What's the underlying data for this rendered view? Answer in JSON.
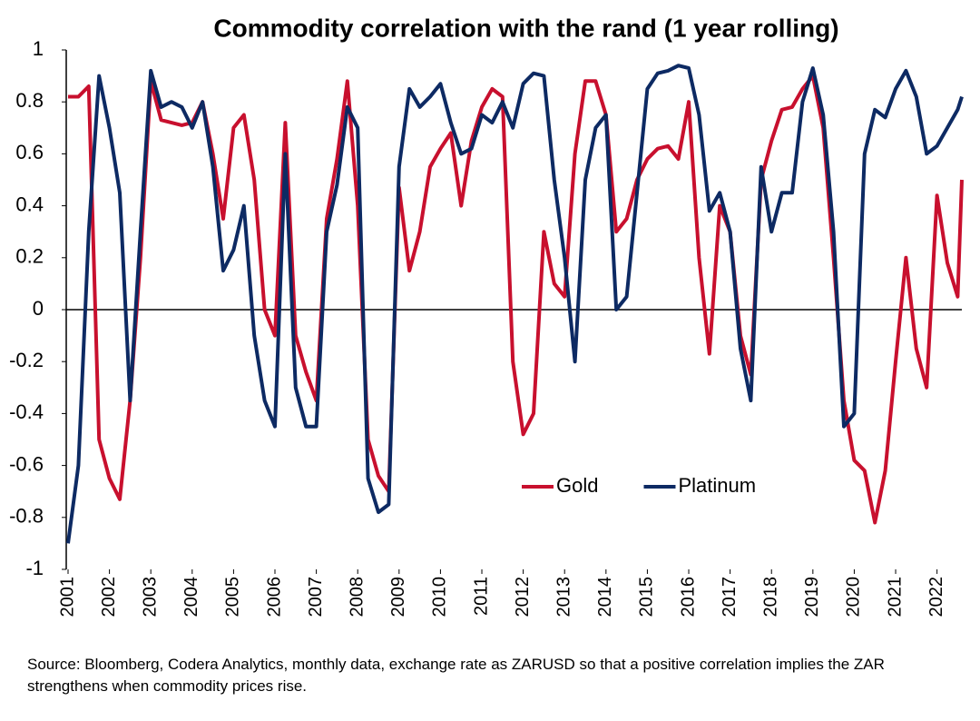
{
  "chart_data": {
    "type": "line",
    "title": "Commodity correlation with the rand (1 year rolling)",
    "note": "Source: Bloomberg, Codera Analytics, monthly data, exchange rate as ZARUSD so that a positive correlation implies the ZAR strengthens when commodity prices rise.",
    "x": [
      2001,
      2001.25,
      2001.5,
      2001.75,
      2002,
      2002.25,
      2002.5,
      2002.75,
      2003,
      2003.25,
      2003.5,
      2003.75,
      2004,
      2004.25,
      2004.5,
      2004.75,
      2005,
      2005.25,
      2005.5,
      2005.75,
      2006,
      2006.25,
      2006.5,
      2006.75,
      2007,
      2007.25,
      2007.5,
      2007.75,
      2008,
      2008.25,
      2008.5,
      2008.75,
      2009,
      2009.25,
      2009.5,
      2009.75,
      2010,
      2010.25,
      2010.5,
      2010.75,
      2011,
      2011.25,
      2011.5,
      2011.75,
      2012,
      2012.25,
      2012.5,
      2012.75,
      2013,
      2013.25,
      2013.5,
      2013.75,
      2014,
      2014.25,
      2014.5,
      2014.75,
      2015,
      2015.25,
      2015.5,
      2015.75,
      2016,
      2016.25,
      2016.5,
      2016.75,
      2017,
      2017.25,
      2017.5,
      2017.75,
      2018,
      2018.25,
      2018.5,
      2018.75,
      2019,
      2019.25,
      2019.5,
      2019.75,
      2020,
      2020.25,
      2020.5,
      2020.75,
      2021,
      2021.25,
      2021.5,
      2021.75,
      2022,
      2022.25,
      2022.5,
      2022.6
    ],
    "series": [
      {
        "name": "Gold",
        "color": "#c8102e",
        "values": [
          0.82,
          0.82,
          0.86,
          -0.5,
          -0.65,
          -0.73,
          -0.35,
          0.2,
          0.88,
          0.73,
          0.72,
          0.71,
          0.72,
          0.8,
          0.6,
          0.35,
          0.7,
          0.75,
          0.5,
          0.0,
          -0.1,
          0.72,
          -0.1,
          -0.24,
          -0.35,
          0.35,
          0.58,
          0.88,
          0.4,
          -0.5,
          -0.64,
          -0.7,
          0.47,
          0.15,
          0.3,
          0.55,
          0.62,
          0.68,
          0.4,
          0.65,
          0.78,
          0.85,
          0.82,
          -0.2,
          -0.48,
          -0.4,
          0.3,
          0.1,
          0.05,
          0.6,
          0.88,
          0.88,
          0.75,
          0.3,
          0.35,
          0.5,
          0.58,
          0.62,
          0.63,
          0.58,
          0.8,
          0.2,
          -0.17,
          0.4,
          0.3,
          -0.1,
          -0.25,
          0.5,
          0.65,
          0.77,
          0.78,
          0.85,
          0.9,
          0.7,
          0.2,
          -0.35,
          -0.58,
          -0.62,
          -0.82,
          -0.62,
          -0.2,
          0.2,
          -0.15,
          -0.3,
          0.44,
          0.18,
          0.05,
          0.5
        ]
      },
      {
        "name": "Platinum",
        "color": "#0d2a63",
        "values": [
          -0.9,
          -0.6,
          0.3,
          0.9,
          0.7,
          0.45,
          -0.35,
          0.3,
          0.92,
          0.78,
          0.8,
          0.78,
          0.7,
          0.8,
          0.55,
          0.15,
          0.23,
          0.4,
          -0.1,
          -0.35,
          -0.45,
          0.6,
          -0.3,
          -0.45,
          -0.45,
          0.3,
          0.48,
          0.78,
          0.7,
          -0.65,
          -0.78,
          -0.75,
          0.55,
          0.85,
          0.78,
          0.82,
          0.87,
          0.72,
          0.6,
          0.62,
          0.75,
          0.72,
          0.8,
          0.7,
          0.87,
          0.91,
          0.9,
          0.5,
          0.2,
          -0.2,
          0.5,
          0.7,
          0.75,
          0.0,
          0.05,
          0.45,
          0.85,
          0.91,
          0.92,
          0.94,
          0.93,
          0.75,
          0.38,
          0.45,
          0.3,
          -0.15,
          -0.35,
          0.55,
          0.3,
          0.45,
          0.45,
          0.8,
          0.93,
          0.75,
          0.3,
          -0.45,
          -0.4,
          0.6,
          0.77,
          0.74,
          0.85,
          0.92,
          0.82,
          0.6,
          0.63,
          0.7,
          0.77,
          0.82
        ]
      }
    ],
    "xlim": [
      2001,
      2022.6
    ],
    "xticks": [
      2001,
      2002,
      2003,
      2004,
      2005,
      2006,
      2007,
      2008,
      2009,
      2010,
      2011,
      2012,
      2013,
      2014,
      2015,
      2016,
      2017,
      2018,
      2019,
      2020,
      2021,
      2022
    ],
    "ylim": [
      -1,
      1
    ],
    "yticks": [
      1,
      0.8,
      0.6,
      0.4,
      0.2,
      0,
      -0.2,
      -0.4,
      -0.6,
      -0.8,
      -1
    ],
    "legend": "lower right"
  }
}
